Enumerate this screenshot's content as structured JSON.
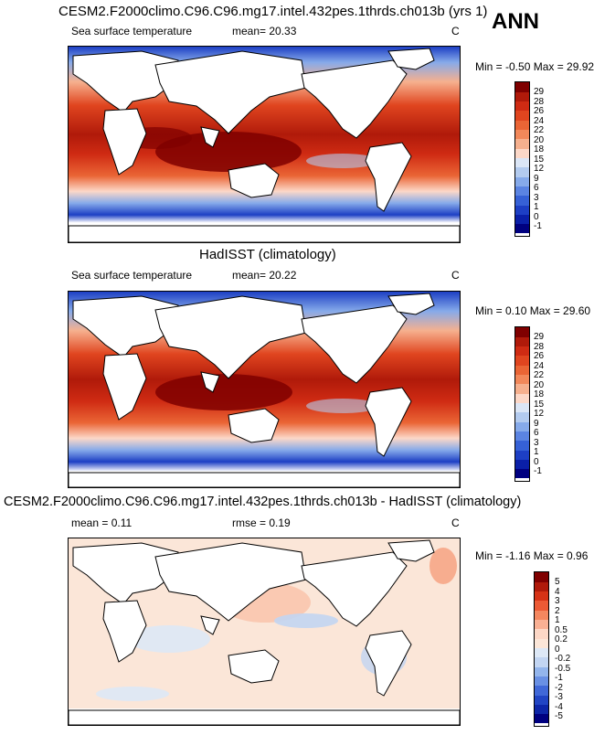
{
  "panels": [
    {
      "title": "CESM2.F2000climo.C96.C96.mg17.intel.432pes.1thrds.ch013b (yrs 1)",
      "left_label": "Sea surface temperature",
      "stat1": "mean=  20.33",
      "stat2": "",
      "units": "C",
      "minmax": "Min =  -0.50 Max =  29.92",
      "levels": [
        "29",
        "28",
        "26",
        "24",
        "22",
        "20",
        "18",
        "15",
        "12",
        "9",
        "6",
        "3",
        "1",
        "0",
        "-1"
      ]
    },
    {
      "title": "HadISST (climatology)",
      "left_label": "Sea surface temperature",
      "stat1": "mean=  20.22",
      "stat2": "",
      "units": "C",
      "minmax": "Min =  0.10 Max =  29.60",
      "levels": [
        "29",
        "28",
        "26",
        "24",
        "22",
        "20",
        "18",
        "15",
        "12",
        "9",
        "6",
        "3",
        "1",
        "0",
        "-1"
      ]
    },
    {
      "title": "CESM2.F2000climo.C96.C96.mg17.intel.432pes.1thrds.ch013b - HadISST (climatology)",
      "left_label": "mean =   0.11",
      "stat1": "",
      "stat2": "rmse =   0.19",
      "units": "C",
      "minmax": "Min =  -1.16 Max =   0.96",
      "levels": [
        "5",
        "4",
        "3",
        "2",
        "1",
        "0.5",
        "0.2",
        "0",
        "-0.2",
        "-0.5",
        "-1",
        "-2",
        "-3",
        "-4",
        "-5"
      ]
    }
  ],
  "season": "ANN",
  "colors": {
    "sst_scale": [
      "#7f0000",
      "#b01a0a",
      "#cf2b13",
      "#e0451f",
      "#ea6535",
      "#f2885a",
      "#f6b08e",
      "#fcd8c8",
      "#dbe6f6",
      "#b3cbef",
      "#86aaea",
      "#5b84e2",
      "#3661d6",
      "#1d3fc4",
      "#0a1fa8",
      "#000080"
    ],
    "diff_scale": [
      "#800000",
      "#b01a0a",
      "#d63216",
      "#ec5a35",
      "#f5875f",
      "#f9b094",
      "#fcd7c6",
      "#fbe6d8",
      "#dde8f6",
      "#c2d5f2",
      "#93b5ec",
      "#6990e4",
      "#4068d8",
      "#2145c4",
      "#0d26a8",
      "#000080"
    ],
    "land": "#ffffff"
  }
}
